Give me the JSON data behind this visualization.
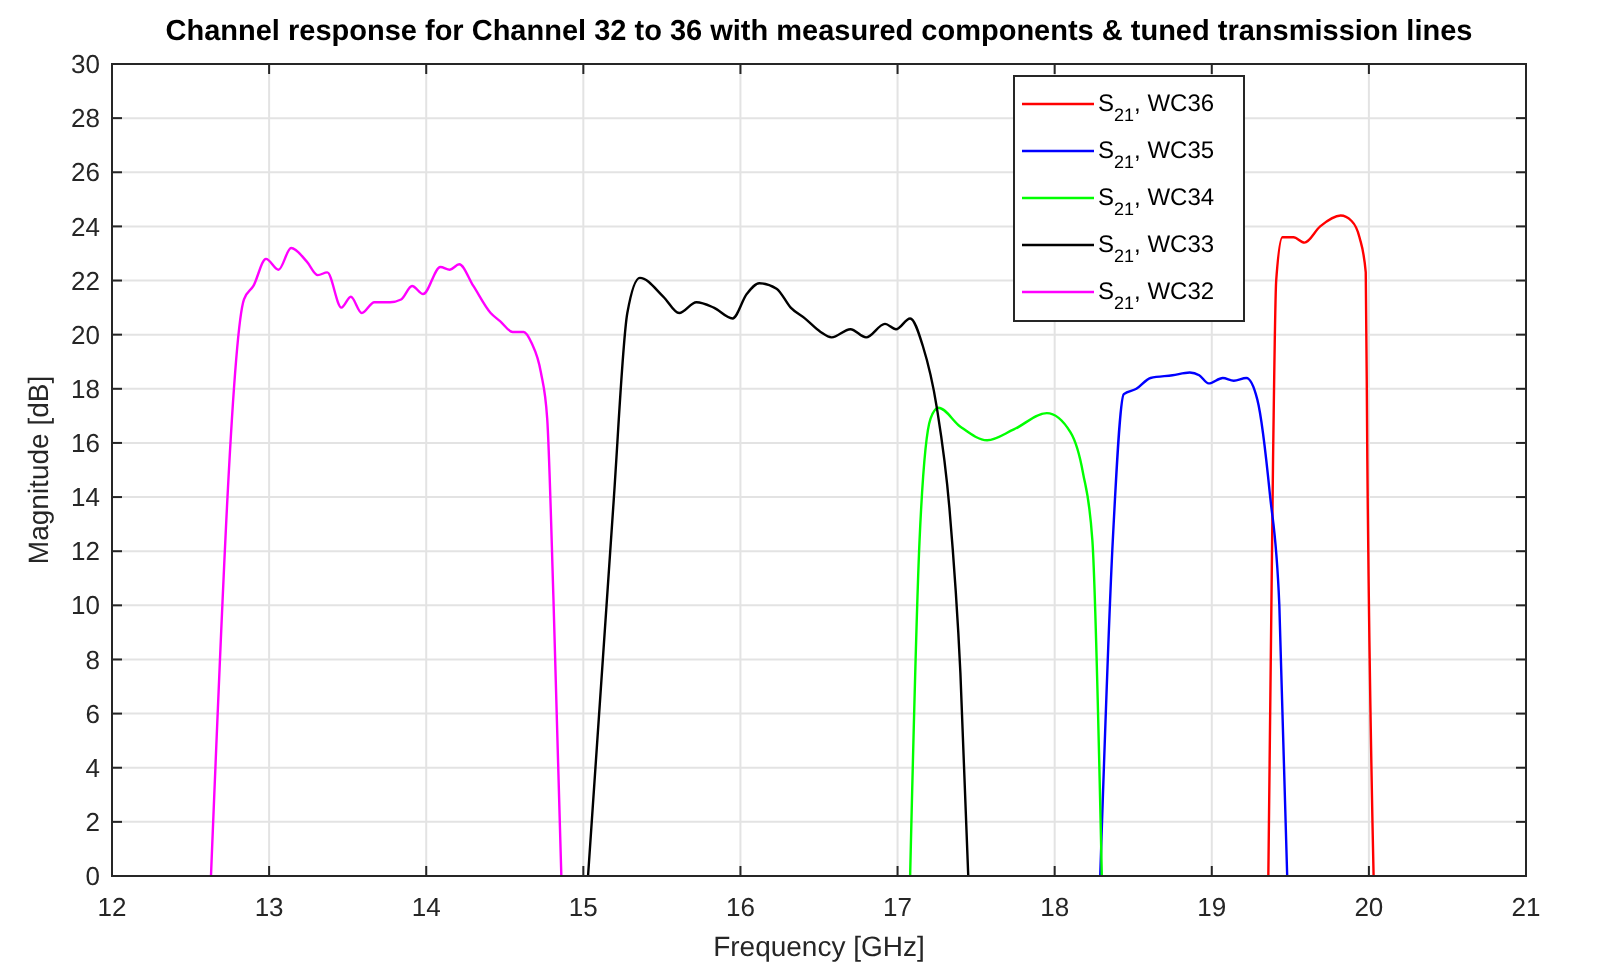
{
  "chart_data": {
    "type": "line",
    "title": "Channel response for Channel 32 to 36 with measured components & tuned transmission lines",
    "xlabel": "Frequency [GHz]",
    "ylabel": "Magnitude [dB]",
    "xlim": [
      12,
      21
    ],
    "ylim": [
      0,
      30
    ],
    "xticks": [
      12,
      13,
      14,
      15,
      16,
      17,
      18,
      19,
      20,
      21
    ],
    "yticks": [
      0,
      2,
      4,
      6,
      8,
      10,
      12,
      14,
      16,
      18,
      20,
      22,
      24,
      26,
      28,
      30
    ],
    "grid": true,
    "legend": "top right",
    "marker": "none",
    "line_style": "solid",
    "series": [
      {
        "name": "S$_{21}$, WC36",
        "color": "#ff0000",
        "x": [
          19.36,
          19.39,
          19.41,
          19.45,
          19.52,
          19.59,
          19.69,
          19.82,
          19.89,
          19.94,
          19.98,
          19.99,
          20.03
        ],
        "values": [
          0,
          15.4,
          22.0,
          23.6,
          23.6,
          23.4,
          24.0,
          24.4,
          24.2,
          23.6,
          22.3,
          15.4,
          0
        ]
      },
      {
        "name": "S$_{21}$, WC35",
        "color": "#0000ff",
        "x": [
          18.29,
          18.37,
          18.44,
          18.52,
          18.61,
          18.75,
          18.86,
          18.92,
          18.98,
          19.07,
          19.14,
          19.22,
          19.29,
          19.37,
          19.43,
          19.48
        ],
        "values": [
          0,
          12.4,
          17.8,
          18.0,
          18.4,
          18.5,
          18.6,
          18.5,
          18.2,
          18.4,
          18.3,
          18.4,
          17.6,
          14.1,
          10.0,
          0
        ]
      },
      {
        "name": "S$_{21}$, WC34",
        "color": "#00ff00",
        "x": [
          17.08,
          17.14,
          17.21,
          17.26,
          17.4,
          17.57,
          17.74,
          17.95,
          18.1,
          18.18,
          18.24,
          18.3
        ],
        "values": [
          0,
          12.4,
          16.9,
          17.3,
          16.6,
          16.1,
          16.5,
          17.1,
          16.4,
          14.9,
          12.4,
          0
        ]
      },
      {
        "name": "S$_{21}$, WC33",
        "color": "#000000",
        "x": [
          15.03,
          15.19,
          15.28,
          15.36,
          15.51,
          15.61,
          15.72,
          15.83,
          15.95,
          16.04,
          16.12,
          16.23,
          16.32,
          16.41,
          16.51,
          16.58,
          16.7,
          16.8,
          16.92,
          16.99,
          17.08,
          17.16,
          17.25,
          17.33,
          17.4,
          17.45
        ],
        "values": [
          0,
          13.6,
          20.8,
          22.1,
          21.4,
          20.8,
          21.2,
          21.0,
          20.6,
          21.5,
          21.9,
          21.7,
          21.0,
          20.6,
          20.1,
          19.9,
          20.2,
          19.9,
          20.4,
          20.2,
          20.6,
          19.6,
          17.3,
          13.6,
          7.5,
          0
        ]
      },
      {
        "name": "S$_{21}$, WC32",
        "color": "#ff00ff",
        "x": [
          12.63,
          12.84,
          12.9,
          12.98,
          13.06,
          13.14,
          13.24,
          13.31,
          13.37,
          13.46,
          13.52,
          13.59,
          13.67,
          13.77,
          13.84,
          13.91,
          13.98,
          14.09,
          14.15,
          14.21,
          14.3,
          14.41,
          14.47,
          14.55,
          14.62,
          14.67,
          14.73,
          14.77,
          14.81,
          14.86
        ],
        "values": [
          0,
          21.3,
          21.8,
          22.8,
          22.4,
          23.2,
          22.7,
          22.2,
          22.3,
          21.0,
          21.4,
          20.8,
          21.2,
          21.2,
          21.3,
          21.8,
          21.5,
          22.5,
          22.4,
          22.6,
          21.8,
          20.8,
          20.5,
          20.1,
          20.1,
          19.7,
          18.6,
          16.9,
          10.2,
          0
        ]
      }
    ]
  }
}
